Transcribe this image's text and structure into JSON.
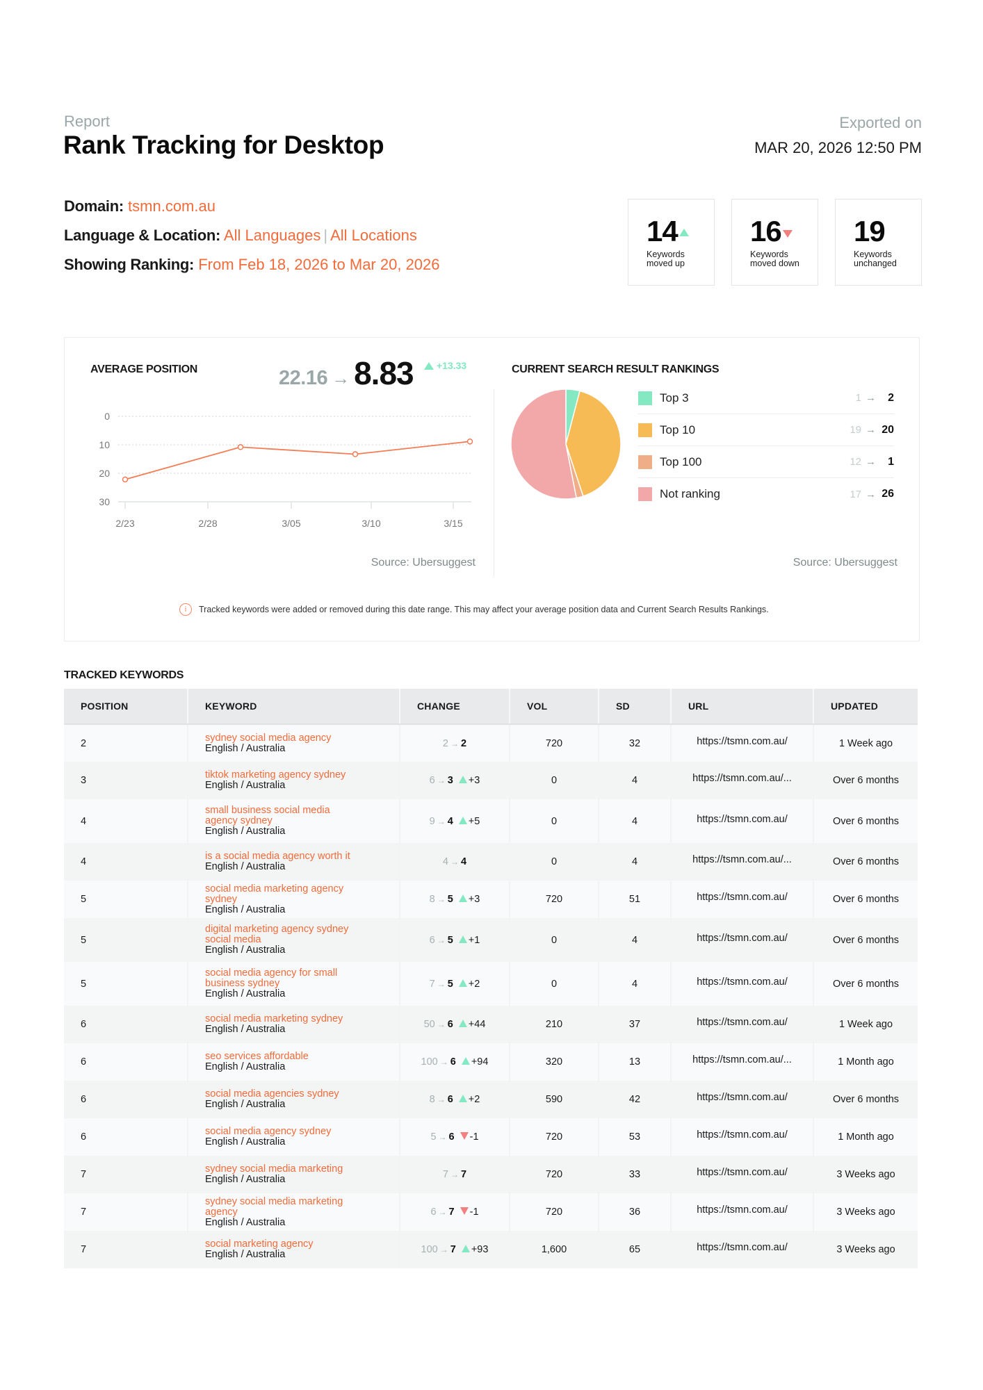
{
  "header": {
    "report_label": "Report",
    "title": "Rank Tracking for Desktop",
    "exported_label": "Exported on",
    "exported_date": "MAR 20, 2026 12:50 PM"
  },
  "meta": {
    "domain_label": "Domain:",
    "domain_value": "tsmn.com.au",
    "langloc_label": "Language & Location:",
    "language_value": "All Languages",
    "separator": "|",
    "location_value": "All Locations",
    "ranking_label": "Showing Ranking:",
    "ranking_value": "From Feb 18, 2026 to Mar 20, 2026"
  },
  "stats": [
    {
      "value": "14",
      "label_line1": "Keywords",
      "label_line2": "moved up",
      "trend": "up"
    },
    {
      "value": "16",
      "label_line1": "Keywords",
      "label_line2": "moved down",
      "trend": "down"
    },
    {
      "value": "19",
      "label_line1": "Keywords",
      "label_line2": "unchanged",
      "trend": "none"
    }
  ],
  "avg_position": {
    "title": "AVERAGE POSITION",
    "old_value": "22.16",
    "arrow": "→",
    "new_value": "8.83",
    "delta": "+13.33",
    "source": "Source: Ubersuggest"
  },
  "rankings": {
    "title": "CURRENT SEARCH RESULT RANKINGS",
    "source": "Source: Ubersuggest",
    "items": [
      {
        "label": "Top 3",
        "old": "1",
        "new": "2",
        "color": "#84e8c2"
      },
      {
        "label": "Top 10",
        "old": "19",
        "new": "20",
        "color": "#f7bb55"
      },
      {
        "label": "Top 100",
        "old": "12",
        "new": "1",
        "color": "#f0ae88"
      },
      {
        "label": "Not ranking",
        "old": "17",
        "new": "26",
        "color": "#f2a8a8"
      }
    ]
  },
  "notice": {
    "icon": "info-icon",
    "text": "Tracked keywords were added or removed during this date range. This may affect your average position data and Current Search Results Rankings."
  },
  "chart_data": [
    {
      "type": "line",
      "title": "AVERAGE POSITION",
      "xlabel": "",
      "ylabel": "",
      "x_ticks": [
        "2/23",
        "2/28",
        "3/05",
        "3/10",
        "3/15"
      ],
      "y_ticks": [
        0,
        10,
        20,
        30
      ],
      "ylim": [
        30,
        0
      ],
      "y_inverted": true,
      "grid": "horizontal dotted",
      "series": [
        {
          "name": "Average position",
          "color": "#f47c55",
          "x": [
            "2/23",
            "3/02",
            "3/09",
            "3/16"
          ],
          "values": [
            22.16,
            10.8,
            13.3,
            8.83
          ]
        }
      ]
    },
    {
      "type": "pie",
      "title": "CURRENT SEARCH RESULT RANKINGS",
      "categories": [
        "Top 3",
        "Top 10",
        "Top 100",
        "Not ranking"
      ],
      "values": [
        2,
        20,
        1,
        26
      ],
      "previous_values": [
        1,
        19,
        12,
        17
      ],
      "colors": [
        "#84e8c2",
        "#f7bb55",
        "#f0ae88",
        "#f2a8a8"
      ],
      "legend_position": "right"
    }
  ],
  "table": {
    "title": "TRACKED KEYWORDS",
    "columns": [
      "POSITION",
      "KEYWORD",
      "CHANGE",
      "VOL",
      "SD",
      "URL",
      "UPDATED"
    ],
    "rows": [
      {
        "position": "2",
        "keyword": "sydney social media agency",
        "location": "English / Australia",
        "old": "2",
        "new": "2",
        "trend": "none",
        "delta": "",
        "vol": "720",
        "sd": "32",
        "url": "https://tsmn.com.au/",
        "updated": "1 Week ago"
      },
      {
        "position": "3",
        "keyword": "tiktok marketing agency sydney",
        "location": "English / Australia",
        "old": "6",
        "new": "3",
        "trend": "up",
        "delta": "+3",
        "vol": "0",
        "sd": "4",
        "url": "https://tsmn.com.au/...",
        "updated": "Over 6 months"
      },
      {
        "position": "4",
        "keyword": "small business social media agency sydney",
        "location": "English / Australia",
        "old": "9",
        "new": "4",
        "trend": "up",
        "delta": "+5",
        "vol": "0",
        "sd": "4",
        "url": "https://tsmn.com.au/",
        "updated": "Over 6 months"
      },
      {
        "position": "4",
        "keyword": "is a social media agency worth it",
        "location": "English / Australia",
        "old": "4",
        "new": "4",
        "trend": "none",
        "delta": "",
        "vol": "0",
        "sd": "4",
        "url": "https://tsmn.com.au/...",
        "updated": "Over 6 months"
      },
      {
        "position": "5",
        "keyword": "social media marketing agency sydney",
        "location": "English / Australia",
        "old": "8",
        "new": "5",
        "trend": "up",
        "delta": "+3",
        "vol": "720",
        "sd": "51",
        "url": "https://tsmn.com.au/",
        "updated": "Over 6 months"
      },
      {
        "position": "5",
        "keyword": "digital marketing agency sydney social media",
        "location": "English / Australia",
        "old": "6",
        "new": "5",
        "trend": "up",
        "delta": "+1",
        "vol": "0",
        "sd": "4",
        "url": "https://tsmn.com.au/",
        "updated": "Over 6 months"
      },
      {
        "position": "5",
        "keyword": "social media agency for small business sydney",
        "location": "English / Australia",
        "old": "7",
        "new": "5",
        "trend": "up",
        "delta": "+2",
        "vol": "0",
        "sd": "4",
        "url": "https://tsmn.com.au/",
        "updated": "Over 6 months"
      },
      {
        "position": "6",
        "keyword": "social media marketing sydney",
        "location": "English / Australia",
        "old": "50",
        "new": "6",
        "trend": "up",
        "delta": "+44",
        "vol": "210",
        "sd": "37",
        "url": "https://tsmn.com.au/",
        "updated": "1 Week ago"
      },
      {
        "position": "6",
        "keyword": "seo services affordable",
        "location": "English / Australia",
        "old": "100",
        "new": "6",
        "trend": "up",
        "delta": "+94",
        "vol": "320",
        "sd": "13",
        "url": "https://tsmn.com.au/...",
        "updated": "1 Month ago"
      },
      {
        "position": "6",
        "keyword": "social media agencies sydney",
        "location": "English / Australia",
        "old": "8",
        "new": "6",
        "trend": "up",
        "delta": "+2",
        "vol": "590",
        "sd": "42",
        "url": "https://tsmn.com.au/",
        "updated": "Over 6 months"
      },
      {
        "position": "6",
        "keyword": "social media agency sydney",
        "location": "English / Australia",
        "old": "5",
        "new": "6",
        "trend": "down",
        "delta": "-1",
        "vol": "720",
        "sd": "53",
        "url": "https://tsmn.com.au/",
        "updated": "1 Month ago"
      },
      {
        "position": "7",
        "keyword": "sydney social media marketing",
        "location": "English / Australia",
        "old": "7",
        "new": "7",
        "trend": "none",
        "delta": "",
        "vol": "720",
        "sd": "33",
        "url": "https://tsmn.com.au/",
        "updated": "3 Weeks ago"
      },
      {
        "position": "7",
        "keyword": "sydney social media marketing agency",
        "location": "English / Australia",
        "old": "6",
        "new": "7",
        "trend": "down",
        "delta": "-1",
        "vol": "720",
        "sd": "36",
        "url": "https://tsmn.com.au/",
        "updated": "3 Weeks ago"
      },
      {
        "position": "7",
        "keyword": "social marketing agency",
        "location": "English / Australia",
        "old": "100",
        "new": "7",
        "trend": "up",
        "delta": "+93",
        "vol": "1,600",
        "sd": "65",
        "url": "https://tsmn.com.au/",
        "updated": "3 Weeks ago"
      }
    ]
  },
  "colors": {
    "accent": "#f26b3a",
    "up": "#84e8c2",
    "down": "#f37f7f",
    "muted": "#9aa7a8",
    "line": "#f47c55"
  }
}
